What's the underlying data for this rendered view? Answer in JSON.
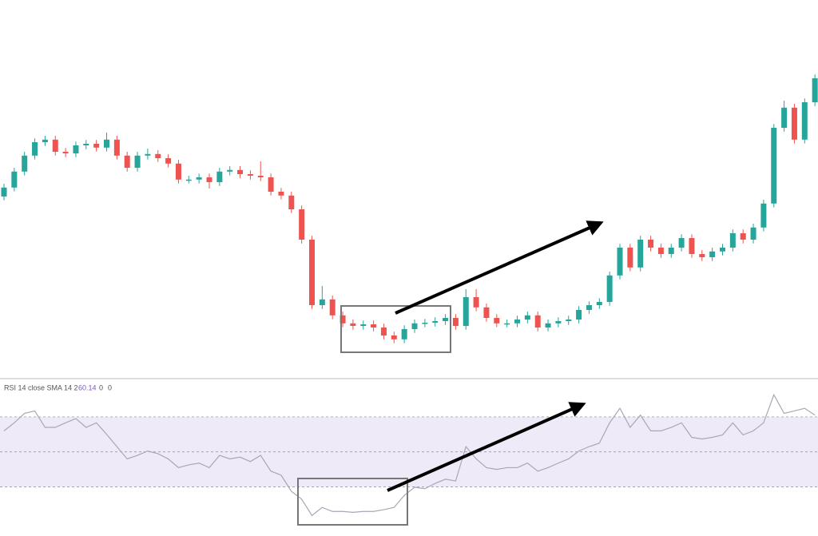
{
  "chart_data": [
    {
      "type": "candlestick",
      "up_color": "#26a69a",
      "down_color": "#ef5350",
      "ylim": [
        0,
        100
      ],
      "open": [
        56,
        58.8,
        63.8,
        68.8,
        73,
        73.8,
        70,
        69.5,
        72,
        72.5,
        71.3,
        73.8,
        68.8,
        65,
        68.8,
        69.3,
        68,
        66.3,
        61.3,
        61.3,
        62,
        60.5,
        63.8,
        64.3,
        63,
        62.5,
        62,
        57.5,
        56.3,
        52,
        42.5,
        22,
        23.8,
        18.8,
        16.3,
        15.5,
        16,
        15,
        12.5,
        11.3,
        14.5,
        16.3,
        16.5,
        17,
        18,
        15.5,
        24.5,
        21.3,
        18,
        16.3,
        16.3,
        17.5,
        18.8,
        15,
        16.3,
        17,
        17.5,
        20.5,
        22,
        23,
        31.3,
        40,
        33.8,
        42.5,
        40,
        38,
        40,
        43,
        38,
        37,
        38.8,
        40,
        44.5,
        42.5,
        46.3,
        53.8,
        77.5,
        83.8,
        73.8,
        85.5
      ],
      "high": [
        60,
        65,
        70,
        74.2,
        75,
        75,
        71.2,
        73.2,
        73.7,
        73.7,
        76,
        75,
        70,
        70,
        71,
        70.5,
        69.2,
        67.5,
        62.5,
        63.2,
        63.2,
        65,
        65.5,
        65.5,
        64.2,
        67,
        63.2,
        58.7,
        57.5,
        53.2,
        43.7,
        28,
        25,
        20,
        17.5,
        17.2,
        17.2,
        16.2,
        13.7,
        15.7,
        17.5,
        17.7,
        18.2,
        19.2,
        19.2,
        27,
        27,
        22.5,
        19.2,
        17.5,
        18.7,
        20,
        20,
        17.5,
        18.2,
        18.7,
        21.7,
        23.2,
        24.2,
        32.5,
        41.2,
        41.2,
        43.7,
        43.7,
        41.2,
        41.2,
        44.2,
        44.2,
        39.2,
        40,
        41.2,
        45.7,
        45.7,
        47.5,
        55,
        78.7,
        86,
        85,
        86.7,
        94.2
      ],
      "low": [
        54.8,
        57.6,
        62.6,
        67.6,
        71.8,
        68.8,
        68.3,
        68.3,
        70.8,
        70.1,
        70.1,
        67.6,
        63.8,
        63.8,
        67.6,
        66.8,
        65.1,
        60.1,
        60.1,
        60.1,
        58.5,
        59.3,
        62.6,
        61.8,
        61.3,
        60.8,
        56.3,
        55.1,
        50.8,
        41.3,
        20.8,
        20.8,
        17.6,
        15.1,
        14.3,
        14.3,
        13.8,
        11.3,
        10.1,
        10.1,
        13.3,
        15.1,
        15.3,
        15.8,
        14.3,
        14.3,
        20.1,
        16.8,
        15.1,
        15.1,
        15.1,
        16.3,
        13.8,
        13.8,
        15.1,
        15.8,
        16.3,
        19.3,
        20.8,
        21.8,
        30.1,
        32.6,
        32.6,
        38.8,
        36.8,
        36.8,
        38.8,
        36.8,
        35.8,
        35.8,
        37.6,
        38.8,
        41.3,
        41.3,
        45.1,
        52.6,
        76.3,
        72.6,
        72.6,
        84.3
      ],
      "close": [
        58.8,
        63.8,
        68.8,
        73,
        73.8,
        70,
        69.5,
        72,
        72.5,
        71.3,
        73.8,
        68.8,
        65,
        68.8,
        69.3,
        68,
        66.3,
        61.3,
        61.3,
        62,
        60.5,
        63.8,
        64.3,
        63,
        62.5,
        62,
        57.5,
        56.3,
        52,
        42.5,
        22,
        23.8,
        18.8,
        16.3,
        15.5,
        16,
        15,
        12.5,
        11.3,
        14.5,
        16.3,
        16.5,
        17,
        18,
        15.5,
        24.5,
        21.3,
        18,
        16.3,
        16.3,
        17.5,
        18.8,
        15,
        16.3,
        17,
        17.5,
        20.5,
        22,
        23,
        31.3,
        40,
        33.8,
        42.5,
        40,
        38,
        40,
        43,
        38,
        37,
        38.8,
        40,
        44.5,
        42.5,
        46.3,
        53.8,
        77.5,
        83.8,
        73.8,
        85.5,
        93
      ]
    },
    {
      "type": "line",
      "title": "RSI 14 close SMA 14 2",
      "readouts": [
        60.14,
        0,
        0
      ],
      "color": "#a9a6b5",
      "ylim": [
        7,
        90
      ],
      "levels": [
        70,
        50,
        30
      ],
      "band_color": "#efeaf8",
      "values": [
        62,
        66.6,
        72,
        73.4,
        64,
        64,
        66.6,
        69,
        64,
        66.6,
        60,
        53,
        46,
        48,
        50.5,
        49,
        46,
        41,
        42.6,
        43.6,
        41,
        48,
        46,
        47,
        44.5,
        48,
        39,
        36.7,
        27.5,
        23,
        13.7,
        18.3,
        16,
        16,
        15.5,
        16,
        16,
        17,
        18.3,
        25.2,
        29.8,
        29,
        32,
        34.4,
        33.4,
        53,
        46,
        41,
        40,
        41,
        41,
        43.6,
        39,
        41,
        43.6,
        46,
        50.5,
        53,
        55,
        66.6,
        74.9,
        64,
        71,
        62,
        62,
        64,
        66.6,
        58.3,
        57.4,
        58.3,
        59.7,
        66.6,
        59.7,
        62,
        66.6,
        82.6,
        72,
        73.4,
        74.9,
        71
      ]
    }
  ]
}
